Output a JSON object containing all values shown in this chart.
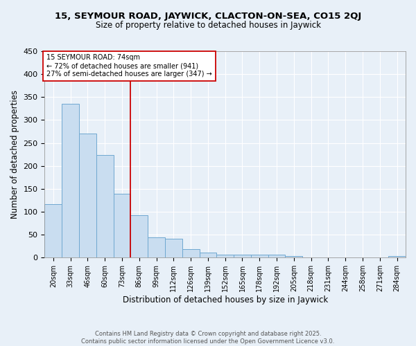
{
  "title_line1": "15, SEYMOUR ROAD, JAYWICK, CLACTON-ON-SEA, CO15 2QJ",
  "title_line2": "Size of property relative to detached houses in Jaywick",
  "xlabel": "Distribution of detached houses by size in Jaywick",
  "ylabel": "Number of detached properties",
  "bar_labels": [
    "20sqm",
    "33sqm",
    "46sqm",
    "60sqm",
    "73sqm",
    "86sqm",
    "99sqm",
    "112sqm",
    "126sqm",
    "139sqm",
    "152sqm",
    "165sqm",
    "178sqm",
    "192sqm",
    "205sqm",
    "218sqm",
    "231sqm",
    "244sqm",
    "258sqm",
    "271sqm",
    "284sqm"
  ],
  "bar_values": [
    117,
    335,
    270,
    224,
    140,
    93,
    45,
    41,
    18,
    11,
    6,
    6,
    7,
    7,
    3,
    0,
    0,
    0,
    0,
    0,
    3
  ],
  "bar_color": "#c9ddf0",
  "bar_edge_color": "#6fa8d0",
  "background_color": "#e8f0f8",
  "grid_color": "#ffffff",
  "vline_color": "#cc0000",
  "annotation_title": "15 SEYMOUR ROAD: 74sqm",
  "annotation_line2": "← 72% of detached houses are smaller (941)",
  "annotation_line3": "27% of semi-detached houses are larger (347) →",
  "annotation_box_color": "white",
  "annotation_box_edge": "#cc0000",
  "ylim": [
    0,
    450
  ],
  "yticks": [
    0,
    50,
    100,
    150,
    200,
    250,
    300,
    350,
    400,
    450
  ],
  "footnote1": "Contains HM Land Registry data © Crown copyright and database right 2025.",
  "footnote2": "Contains public sector information licensed under the Open Government Licence v3.0."
}
